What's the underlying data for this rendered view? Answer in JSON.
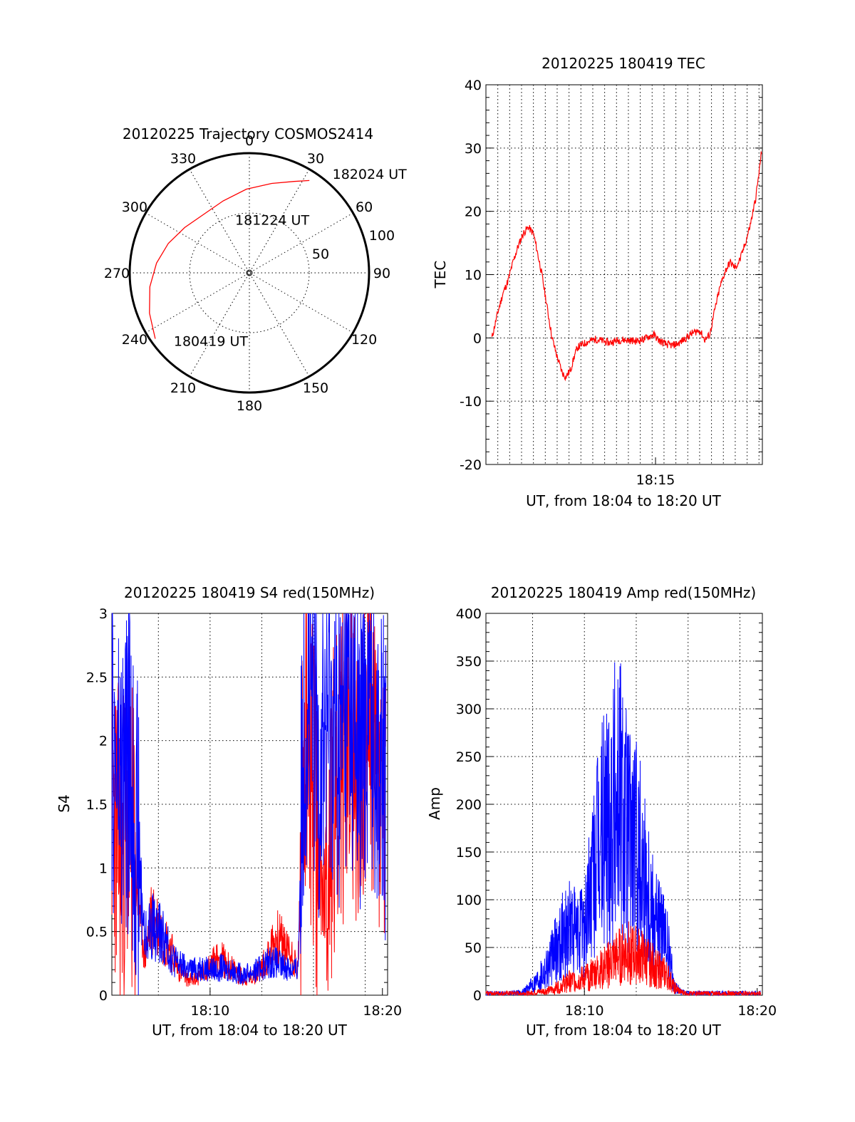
{
  "chart_data": [
    {
      "id": "trajectory",
      "type": "polar",
      "title": "20120225 Trajectory COSMOS2414",
      "azimuth_labels": [
        0,
        30,
        60,
        90,
        120,
        150,
        180,
        210,
        240,
        270,
        300,
        330
      ],
      "ring_labels": [
        {
          "elevation": 50,
          "text": "50"
        },
        {
          "elevation": 100,
          "text": "100"
        }
      ],
      "r_max": 100,
      "track": [
        {
          "az": 235,
          "r": 96
        },
        {
          "az": 248,
          "r": 90
        },
        {
          "az": 262,
          "r": 84
        },
        {
          "az": 276,
          "r": 78
        },
        {
          "az": 290,
          "r": 72
        },
        {
          "az": 305,
          "r": 66
        },
        {
          "az": 322,
          "r": 62
        },
        {
          "az": 340,
          "r": 64
        },
        {
          "az": 358,
          "r": 70
        },
        {
          "az": 14,
          "r": 77
        },
        {
          "az": 26,
          "r": 85
        },
        {
          "az": 33,
          "r": 92
        }
      ],
      "annotations": [
        {
          "text": "180419 UT",
          "az": 228,
          "r": 85
        },
        {
          "text": "181224 UT",
          "az": 345,
          "r": 46
        },
        {
          "text": "182024 UT",
          "az": 40,
          "r": 108
        }
      ],
      "track_color": "#ff0000"
    },
    {
      "id": "tec",
      "type": "line",
      "title": "20120225 180419 TEC",
      "ylabel": "TEC",
      "xlabel": "UT, from 18:04 to 18:20 UT",
      "xlim": [
        6.3,
        22.6
      ],
      "ylim": [
        -20,
        40
      ],
      "yticks": [
        -20,
        -10,
        0,
        10,
        20,
        30,
        40
      ],
      "xticks": [
        {
          "value": 16.3,
          "label": "18:15"
        }
      ],
      "x_grid_step": 0.7,
      "y_grid": [
        -10,
        0,
        10,
        20,
        30
      ],
      "color": "#ff0000",
      "x": [
        6.65,
        7.0,
        7.3,
        7.6,
        7.9,
        8.2,
        8.5,
        8.8,
        9.1,
        9.3,
        9.6,
        9.9,
        10.2,
        10.5,
        10.8,
        11.0,
        11.3,
        11.5,
        11.7,
        12.0,
        12.4,
        12.8,
        13.2,
        13.6,
        14.0,
        14.4,
        14.8,
        15.2,
        15.6,
        15.9,
        16.2,
        16.5,
        16.9,
        17.3,
        17.7,
        18.1,
        18.5,
        18.9,
        19.2,
        19.5,
        19.8,
        20.1,
        20.4,
        20.7,
        21.0,
        21.3,
        21.6,
        21.9,
        22.2,
        22.4,
        22.55
      ],
      "y": [
        0,
        4,
        7,
        9,
        12,
        14.5,
        16.5,
        17.5,
        16.5,
        14,
        10,
        5,
        0,
        -3,
        -5.5,
        -6.2,
        -5,
        -3,
        -1.5,
        -1,
        -0.5,
        -0.2,
        -0.5,
        -0.8,
        -0.4,
        -0.3,
        -0.4,
        -0.5,
        -0.2,
        0.2,
        0.5,
        -0.4,
        -1,
        -1.2,
        -0.8,
        0,
        0.8,
        1.2,
        -0.3,
        0.5,
        4.5,
        8,
        10.5,
        12,
        11,
        12.5,
        15,
        18,
        22,
        26,
        29.5
      ]
    },
    {
      "id": "s4",
      "type": "line",
      "title": "20120225 180419 S4 red(150MHz)",
      "ylabel": "S4",
      "xlabel": "UT, from 18:04 to 18:20 UT",
      "xlim": [
        4.3,
        20.3
      ],
      "ylim": [
        0,
        3
      ],
      "yticks": [
        0,
        0.5,
        1,
        1.5,
        2,
        2.5,
        3
      ],
      "yticklabels": [
        "0",
        "0.5",
        "1",
        "1.5",
        "2",
        "2.5",
        "3"
      ],
      "xticks": [
        {
          "value": 10,
          "label": "18:10"
        },
        {
          "value": 20,
          "label": "18:20"
        }
      ],
      "x_grid": [
        7,
        10,
        13,
        16,
        19
      ],
      "y_grid": [
        0.5,
        1,
        1.5,
        2,
        2.5
      ],
      "series": [
        {
          "color": "#ff0000",
          "x": [
            4.3,
            4.8,
            5.3,
            5.8,
            6.2,
            6.6,
            7.0,
            7.3,
            7.6,
            7.9,
            8.2,
            8.5,
            8.8,
            9.1,
            9.4,
            9.7,
            10.0,
            10.3,
            10.6,
            10.9,
            11.2,
            11.5,
            11.8,
            12.1,
            12.4,
            12.7,
            13.0,
            13.3,
            13.6,
            13.9,
            14.2,
            14.5,
            14.8,
            15.1,
            15.4,
            15.7,
            16.0,
            16.3,
            16.6,
            16.9,
            17.2,
            17.5,
            17.8,
            18.1,
            18.4,
            18.7,
            19.0,
            19.3,
            19.6,
            19.9,
            20.2
          ],
          "y": [
            1.6,
            1.1,
            1.3,
            0.9,
            0.3,
            0.6,
            0.55,
            0.45,
            0.4,
            0.3,
            0.2,
            0.15,
            0.12,
            0.12,
            0.15,
            0.2,
            0.22,
            0.28,
            0.3,
            0.25,
            0.22,
            0.18,
            0.15,
            0.13,
            0.14,
            0.18,
            0.22,
            0.28,
            0.4,
            0.45,
            0.42,
            0.35,
            0.3,
            0.2,
            1.8,
            1.9,
            1.6,
            1.0,
            0.8,
            1.2,
            1.5,
            1.6,
            1.9,
            2.1,
            1.7,
            1.9,
            2.0,
            2.2,
            1.8,
            1.5,
            1.4
          ]
        },
        {
          "color": "#0000ff",
          "x": [
            4.3,
            4.8,
            5.3,
            5.8,
            6.2,
            6.6,
            7.0,
            7.3,
            7.6,
            7.9,
            8.2,
            8.5,
            8.8,
            9.1,
            9.4,
            9.7,
            10.0,
            10.3,
            10.6,
            10.9,
            11.2,
            11.5,
            11.8,
            12.1,
            12.4,
            12.7,
            13.0,
            13.3,
            13.6,
            13.9,
            14.2,
            14.5,
            14.8,
            15.1,
            15.4,
            15.7,
            16.0,
            16.3,
            16.6,
            16.9,
            17.2,
            17.5,
            17.8,
            18.1,
            18.4,
            18.7,
            19.0,
            19.3,
            19.6,
            19.9,
            20.2
          ],
          "y": [
            1.9,
            1.6,
            1.8,
            1.2,
            0.45,
            0.55,
            0.5,
            0.45,
            0.35,
            0.28,
            0.24,
            0.22,
            0.2,
            0.2,
            0.22,
            0.22,
            0.2,
            0.2,
            0.22,
            0.2,
            0.2,
            0.18,
            0.17,
            0.17,
            0.18,
            0.2,
            0.22,
            0.25,
            0.26,
            0.25,
            0.22,
            0.22,
            0.2,
            0.2,
            2.0,
            2.4,
            2.1,
            1.8,
            2.0,
            2.2,
            2.0,
            1.9,
            2.2,
            2.4,
            2.0,
            1.8,
            2.1,
            2.3,
            2.0,
            1.8,
            1.7
          ]
        }
      ]
    },
    {
      "id": "amp",
      "type": "line",
      "title": "20120225 180419 Amp red(150MHz)",
      "ylabel": "Amp",
      "xlabel": "UT, from 18:04 to 18:20 UT",
      "xlim": [
        4.3,
        20.3
      ],
      "ylim": [
        0,
        400
      ],
      "yticks": [
        0,
        50,
        100,
        150,
        200,
        250,
        300,
        350,
        400
      ],
      "xticks": [
        {
          "value": 10,
          "label": "18:10"
        },
        {
          "value": 20,
          "label": "18:20"
        }
      ],
      "x_grid": [
        7,
        10,
        13,
        16,
        19
      ],
      "y_grid": [
        50,
        100,
        150,
        200,
        250,
        300,
        350
      ],
      "series": [
        {
          "color": "#0000ff",
          "x": [
            4.3,
            5.0,
            5.7,
            6.4,
            6.8,
            7.2,
            7.6,
            8.0,
            8.4,
            8.8,
            9.2,
            9.6,
            10.0,
            10.4,
            10.8,
            11.2,
            11.6,
            12.0,
            12.4,
            12.8,
            13.2,
            13.6,
            14.0,
            14.4,
            14.8,
            15.2,
            15.6,
            16.0,
            16.5,
            17.0,
            17.5,
            18.0,
            18.5,
            19.0,
            19.5,
            20.2
          ],
          "y": [
            2,
            2,
            2,
            3,
            8,
            15,
            25,
            35,
            50,
            65,
            70,
            60,
            75,
            110,
            150,
            180,
            200,
            220,
            180,
            160,
            150,
            120,
            90,
            70,
            50,
            10,
            3,
            2,
            2,
            2,
            2,
            2,
            2,
            2,
            2,
            2
          ]
        },
        {
          "color": "#ff0000",
          "x": [
            4.3,
            5.0,
            5.7,
            6.4,
            6.8,
            7.2,
            7.6,
            8.0,
            8.4,
            8.8,
            9.2,
            9.6,
            10.0,
            10.4,
            10.8,
            11.2,
            11.6,
            12.0,
            12.4,
            12.8,
            13.2,
            13.6,
            14.0,
            14.4,
            14.8,
            15.2,
            15.6,
            16.0,
            16.5,
            17.0,
            17.5,
            18.0,
            18.5,
            19.0,
            19.5,
            20.2
          ],
          "y": [
            2,
            2,
            2,
            2,
            2,
            3,
            4,
            5,
            8,
            12,
            15,
            15,
            18,
            22,
            25,
            30,
            35,
            40,
            45,
            42,
            40,
            35,
            30,
            25,
            20,
            8,
            3,
            2,
            2,
            2,
            2,
            2,
            2,
            2,
            2,
            2
          ]
        }
      ]
    }
  ]
}
